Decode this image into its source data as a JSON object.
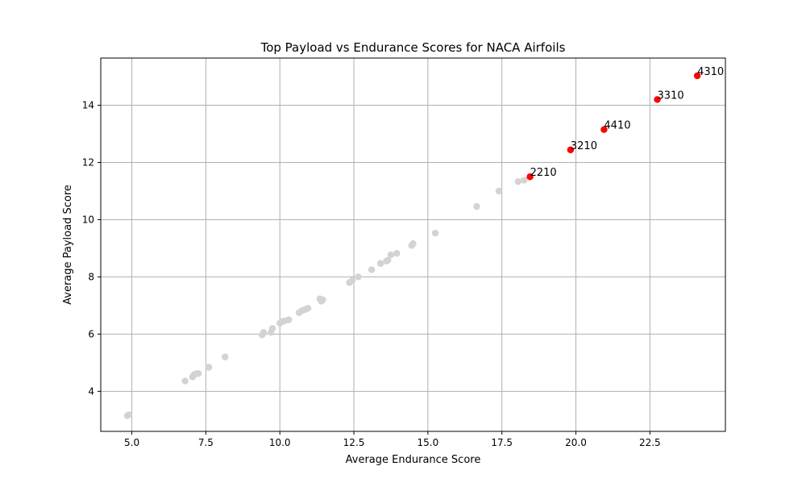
{
  "chart_data": {
    "type": "scatter",
    "title": "Top Payload vs Endurance Scores for NACA Airfoils",
    "xlabel": "Average Endurance Score",
    "ylabel": "Average Payload Score",
    "xlim": [
      3.95,
      25.05
    ],
    "ylim": [
      2.6,
      15.65
    ],
    "xticks": [
      5.0,
      7.5,
      10.0,
      12.5,
      15.0,
      17.5,
      20.0,
      22.5
    ],
    "xtick_labels": [
      "5.0",
      "7.5",
      "10.0",
      "12.5",
      "15.0",
      "17.5",
      "20.0",
      "22.5"
    ],
    "yticks": [
      4,
      6,
      8,
      10,
      12,
      14
    ],
    "ytick_labels": [
      "4",
      "6",
      "8",
      "10",
      "12",
      "14"
    ],
    "grid": true,
    "legend": false,
    "colors": {
      "background_points": "#d3d3d3",
      "highlighted_points": "#ff0000",
      "grid": "#b0b0b0",
      "axes": "#000000"
    },
    "series": [
      {
        "role": "all-airfoils",
        "color": "#d3d3d3",
        "points": [
          [
            4.9,
            3.18
          ],
          [
            4.85,
            3.15
          ],
          [
            6.8,
            4.36
          ],
          [
            7.05,
            4.5
          ],
          [
            7.1,
            4.58
          ],
          [
            7.2,
            4.62
          ],
          [
            7.25,
            4.62
          ],
          [
            7.6,
            4.84
          ],
          [
            8.15,
            5.2
          ],
          [
            9.4,
            5.97
          ],
          [
            9.45,
            6.06
          ],
          [
            9.7,
            6.06
          ],
          [
            9.75,
            6.2
          ],
          [
            10.0,
            6.38
          ],
          [
            10.05,
            6.43
          ],
          [
            10.15,
            6.46
          ],
          [
            10.3,
            6.5
          ],
          [
            10.65,
            6.75
          ],
          [
            10.75,
            6.82
          ],
          [
            10.85,
            6.86
          ],
          [
            10.95,
            6.9
          ],
          [
            11.35,
            7.23
          ],
          [
            11.4,
            7.15
          ],
          [
            11.45,
            7.2
          ],
          [
            12.35,
            7.8
          ],
          [
            12.45,
            7.88
          ],
          [
            12.65,
            8.0
          ],
          [
            13.1,
            8.25
          ],
          [
            13.4,
            8.47
          ],
          [
            13.6,
            8.55
          ],
          [
            13.65,
            8.58
          ],
          [
            13.75,
            8.77
          ],
          [
            13.95,
            8.82
          ],
          [
            14.45,
            9.1
          ],
          [
            14.5,
            9.16
          ],
          [
            15.25,
            9.53
          ],
          [
            16.65,
            10.46
          ],
          [
            17.4,
            11.0
          ],
          [
            18.05,
            11.33
          ],
          [
            18.25,
            11.38
          ],
          [
            18.45,
            11.5
          ],
          [
            19.82,
            12.44
          ],
          [
            20.95,
            13.15
          ],
          [
            22.75,
            14.2
          ],
          [
            24.1,
            15.03
          ]
        ]
      },
      {
        "role": "top-airfoils",
        "color": "#ff0000",
        "points": [
          {
            "x": 18.45,
            "y": 11.5,
            "label": "2210"
          },
          {
            "x": 19.82,
            "y": 12.44,
            "label": "3210"
          },
          {
            "x": 20.95,
            "y": 13.15,
            "label": "4410"
          },
          {
            "x": 22.75,
            "y": 14.2,
            "label": "3310"
          },
          {
            "x": 24.1,
            "y": 15.03,
            "label": "4310"
          }
        ]
      }
    ]
  }
}
